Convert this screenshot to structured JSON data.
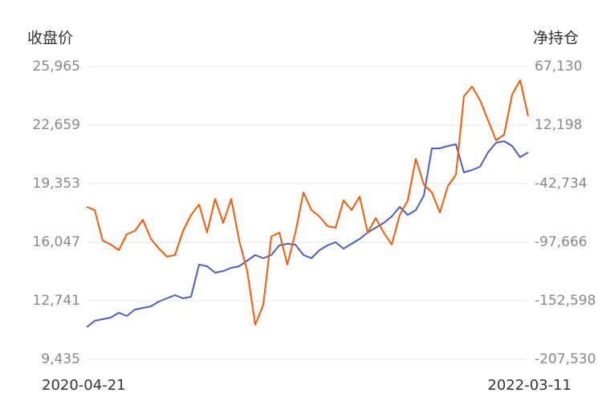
{
  "chart_data": {
    "type": "line",
    "y_label": "收盘价",
    "y2_label": "净持仓",
    "categories": [
      "2020-04-21",
      null,
      null,
      null,
      null,
      null,
      null,
      null,
      null,
      null,
      null,
      null,
      null,
      null,
      null,
      null,
      null,
      null,
      null,
      null,
      null,
      null,
      null,
      null,
      null,
      null,
      null,
      null,
      null,
      null,
      null,
      null,
      null,
      null,
      null,
      null,
      null,
      null,
      null,
      null,
      null,
      null,
      null,
      null,
      null,
      null,
      null,
      null,
      null,
      null,
      null,
      null,
      null,
      null,
      null,
      "2022-03-11"
    ],
    "ylim": [
      9435,
      25965
    ],
    "yticks": [
      {
        "value": 9435,
        "label": "9,435"
      },
      {
        "value": 12741,
        "label": "12,741"
      },
      {
        "value": 16047,
        "label": "16,047"
      },
      {
        "value": 19353,
        "label": "19,353"
      },
      {
        "value": 22659,
        "label": "22,659"
      },
      {
        "value": 25965,
        "label": "25,965"
      }
    ],
    "y2lim": [
      -207530,
      67130
    ],
    "y2ticks": [
      {
        "value": -207530,
        "label": "-207,530"
      },
      {
        "value": -152598,
        "label": "-152,598"
      },
      {
        "value": -97666,
        "label": "-97,666"
      },
      {
        "value": -42734,
        "label": "-42,734"
      },
      {
        "value": 12198,
        "label": "12,198"
      },
      {
        "value": 67130,
        "label": "67,130"
      }
    ],
    "grid": true,
    "series": [
      {
        "color": "#4a5fbf",
        "values": [
          11246,
          11608,
          11699,
          11789,
          12061,
          11880,
          12242,
          12333,
          12423,
          12695,
          12876,
          13057,
          12876,
          12967,
          14778,
          14688,
          14325,
          14416,
          14597,
          14688,
          15005,
          15322,
          15141,
          15322,
          15865,
          15956,
          15911,
          15322,
          15141,
          15594,
          15865,
          16046,
          15684,
          15956,
          16228,
          16590,
          16862,
          17133,
          17496,
          18039,
          17586,
          17858,
          18673,
          21345,
          21345,
          21481,
          21572,
          19987,
          20123,
          20304,
          21119,
          21662,
          21753,
          21481,
          20847,
          21119
        ]
      },
      {
        "color": "#f25c0a",
        "axis": "y2",
        "values": [
          -64558,
          -67568,
          -96163,
          -99925,
          -105193,
          -90143,
          -87133,
          -76598,
          -94658,
          -103688,
          -111213,
          -109708,
          -87133,
          -72083,
          -62300,
          -88638,
          -57033,
          -79608,
          -57033,
          -96163,
          -124758,
          -175175,
          -156363,
          -92400,
          -88638,
          -118738,
          -88638,
          -51013,
          -67568,
          -73588,
          -82618,
          -84123,
          -58538,
          -67568,
          -54775,
          -88638,
          -75093,
          -88638,
          -99925,
          -72083,
          -58538,
          -19408,
          -43488,
          -51013,
          -69825,
          -44993,
          -34458,
          39287,
          48317,
          35525,
          16712,
          -2100,
          3167,
          40792,
          54337,
          20475
        ]
      }
    ]
  }
}
